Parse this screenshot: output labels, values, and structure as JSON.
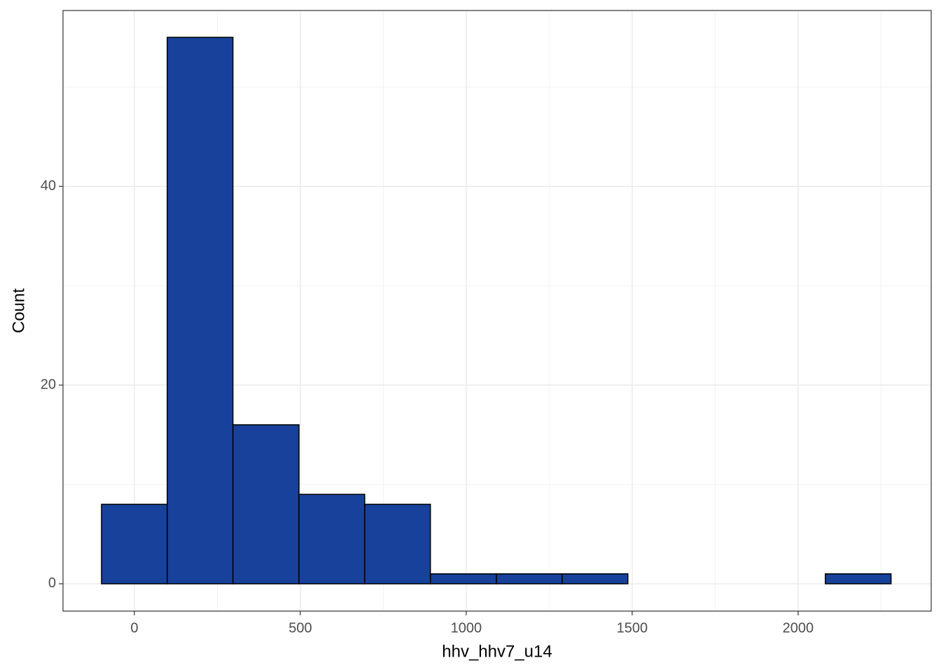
{
  "chart_data": {
    "type": "histogram",
    "x_label": "hhv_hhv7_u14",
    "y_label": "Count",
    "bins": [
      -99,
      99,
      297,
      496,
      694,
      892,
      1091,
      1289,
      1487,
      1685,
      1883,
      2082,
      2280
    ],
    "counts": [
      8,
      55,
      16,
      9,
      8,
      1,
      1,
      1,
      0,
      0,
      0,
      1
    ],
    "color": "#17419a",
    "edge_color": "#000000",
    "xlim": [
      -215,
      2401
    ],
    "xticks": [
      0,
      500,
      1000,
      1500,
      2000
    ],
    "ylim": [
      -2.75,
      57.7
    ],
    "yticks": [
      0,
      20,
      40
    ],
    "grid": true
  }
}
